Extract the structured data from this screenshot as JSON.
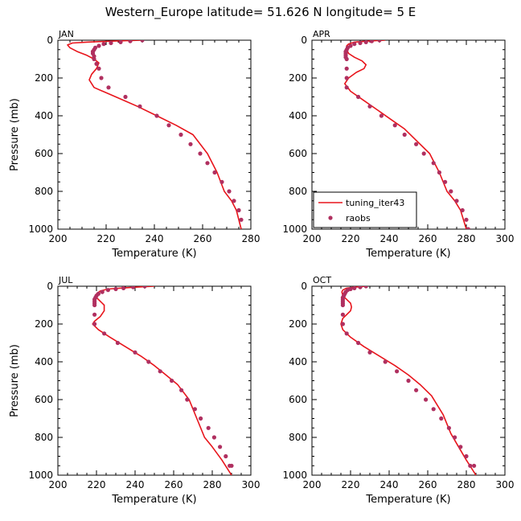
{
  "title": "Western_Europe  latitude= 51.626 N longitude= 5 E",
  "colors": {
    "model": "#e8141b",
    "obs": "#b03060",
    "axis": "#000000"
  },
  "legend": {
    "model_label": "tuning_iter43",
    "obs_label": "raobs"
  },
  "chart_data": [
    {
      "type": "line",
      "panel": "JAN",
      "xlabel": "Temperature (K)",
      "ylabel": "Pressure (mb)",
      "xlim": [
        200,
        280
      ],
      "xticks": [
        200,
        220,
        240,
        260,
        280
      ],
      "ylim": [
        1000,
        0
      ],
      "yticks": [
        0,
        200,
        400,
        600,
        800,
        1000
      ],
      "series": [
        {
          "name": "tuning_iter43",
          "kind": "line",
          "x": [
            235,
            222,
            212,
            206,
            204,
            205,
            208,
            212,
            215,
            217,
            216,
            214,
            213,
            215,
            224,
            233,
            241,
            249,
            256,
            262,
            266,
            269,
            272,
            274,
            276
          ],
          "y": [
            0,
            5,
            10,
            15,
            25,
            40,
            60,
            80,
            100,
            120,
            150,
            180,
            210,
            250,
            300,
            350,
            400,
            450,
            500,
            600,
            700,
            800,
            850,
            900,
            1000
          ]
        },
        {
          "name": "raobs",
          "kind": "points",
          "x": [
            235,
            230,
            226,
            222,
            219,
            217,
            215.5,
            215,
            214.5,
            214.5,
            215,
            215,
            216,
            217,
            218,
            221,
            228,
            234,
            241,
            246,
            251,
            255,
            259,
            262,
            265,
            268,
            271,
            273,
            275,
            276
          ],
          "y": [
            0,
            5,
            10,
            15,
            20,
            30,
            40,
            50,
            60,
            70,
            85,
            100,
            125,
            150,
            200,
            250,
            300,
            350,
            400,
            450,
            500,
            550,
            600,
            650,
            700,
            750,
            800,
            850,
            900,
            950
          ]
        }
      ]
    },
    {
      "type": "line",
      "panel": "APR",
      "xlabel": "Temperature (K)",
      "ylabel": "",
      "xlim": [
        200,
        300
      ],
      "xticks": [
        200,
        220,
        240,
        260,
        280,
        300
      ],
      "ylim": [
        1000,
        0
      ],
      "yticks": [
        0,
        200,
        400,
        600,
        800,
        1000
      ],
      "series": [
        {
          "name": "tuning_iter43",
          "kind": "line",
          "x": [
            238,
            228,
            222,
            219,
            218,
            218,
            219,
            222,
            226,
            228,
            227,
            223,
            219,
            217,
            220,
            227,
            234,
            241,
            248,
            253,
            261,
            266,
            270,
            274,
            277,
            280
          ],
          "y": [
            0,
            5,
            10,
            20,
            30,
            50,
            70,
            90,
            110,
            130,
            150,
            170,
            200,
            230,
            270,
            320,
            370,
            420,
            470,
            520,
            600,
            700,
            800,
            850,
            900,
            1000
          ]
        },
        {
          "name": "raobs",
          "kind": "points",
          "x": [
            235,
            231,
            228,
            225,
            222,
            220,
            218.5,
            218,
            217.5,
            217.5,
            217.5,
            217.5,
            218,
            218,
            218,
            218,
            224,
            230,
            236,
            243,
            248,
            254,
            258,
            263,
            266,
            269,
            272,
            275,
            278,
            280,
            281
          ],
          "y": [
            0,
            5,
            10,
            15,
            20,
            30,
            40,
            50,
            60,
            70,
            80,
            90,
            100,
            150,
            200,
            250,
            300,
            350,
            400,
            450,
            500,
            550,
            600,
            650,
            700,
            750,
            800,
            850,
            900,
            950,
            1000
          ]
        }
      ]
    },
    {
      "type": "line",
      "panel": "JUL",
      "xlabel": "Temperature (K)",
      "ylabel": "Pressure (mb)",
      "xlim": [
        200,
        300
      ],
      "xticks": [
        200,
        220,
        240,
        260,
        280,
        300
      ],
      "ylim": [
        1000,
        0
      ],
      "yticks": [
        0,
        200,
        400,
        600,
        800,
        1000
      ],
      "series": [
        {
          "name": "tuning_iter43",
          "kind": "line",
          "x": [
            250,
            240,
            232,
            226,
            222,
            220,
            220,
            222,
            224,
            224,
            222,
            219,
            218,
            221,
            227,
            235,
            243,
            250,
            256,
            262,
            268,
            272,
            276,
            280,
            285,
            290
          ],
          "y": [
            0,
            5,
            10,
            15,
            25,
            40,
            60,
            80,
            100,
            130,
            160,
            185,
            200,
            230,
            270,
            320,
            370,
            420,
            470,
            520,
            600,
            700,
            800,
            850,
            920,
            1000
          ]
        },
        {
          "name": "raobs",
          "kind": "points",
          "x": [
            245,
            239,
            234,
            230,
            226,
            223,
            221,
            220,
            219.5,
            219,
            219,
            219,
            219,
            219,
            219,
            224,
            231,
            240,
            247,
            253,
            259,
            264,
            267,
            271,
            274,
            278,
            281,
            284,
            287,
            289,
            290
          ],
          "y": [
            0,
            5,
            10,
            15,
            20,
            30,
            40,
            50,
            60,
            70,
            80,
            90,
            100,
            150,
            200,
            250,
            300,
            350,
            400,
            450,
            500,
            550,
            600,
            650,
            700,
            750,
            800,
            850,
            900,
            950,
            950
          ]
        }
      ]
    },
    {
      "type": "line",
      "panel": "OCT",
      "xlabel": "Temperature (K)",
      "ylabel": "",
      "xlim": [
        200,
        300
      ],
      "xticks": [
        200,
        220,
        240,
        260,
        280,
        300
      ],
      "ylim": [
        1000,
        0
      ],
      "yticks": [
        0,
        200,
        400,
        600,
        800,
        1000
      ],
      "series": [
        {
          "name": "tuning_iter43",
          "kind": "line",
          "x": [
            228,
            222,
            218,
            216,
            215.5,
            216,
            218,
            220,
            220.5,
            220,
            218,
            216,
            215,
            216,
            220,
            227,
            235,
            243,
            250,
            256,
            262,
            268,
            272,
            276,
            280,
            285
          ],
          "y": [
            0,
            5,
            10,
            20,
            30,
            50,
            70,
            90,
            110,
            130,
            150,
            170,
            200,
            230,
            270,
            320,
            370,
            420,
            470,
            520,
            580,
            680,
            780,
            850,
            920,
            1000
          ]
        },
        {
          "name": "raobs",
          "kind": "points",
          "x": [
            228,
            225,
            222,
            220,
            218.5,
            217.5,
            217,
            216.5,
            216,
            216,
            216,
            216,
            216,
            216,
            216,
            218,
            224,
            230,
            238,
            244,
            250,
            254,
            259,
            263,
            267,
            271,
            274,
            277,
            280,
            282,
            284
          ],
          "y": [
            0,
            5,
            10,
            15,
            20,
            30,
            40,
            50,
            60,
            70,
            80,
            90,
            100,
            150,
            200,
            250,
            300,
            350,
            400,
            450,
            500,
            550,
            600,
            650,
            700,
            750,
            800,
            850,
            900,
            950,
            950
          ]
        }
      ]
    }
  ]
}
